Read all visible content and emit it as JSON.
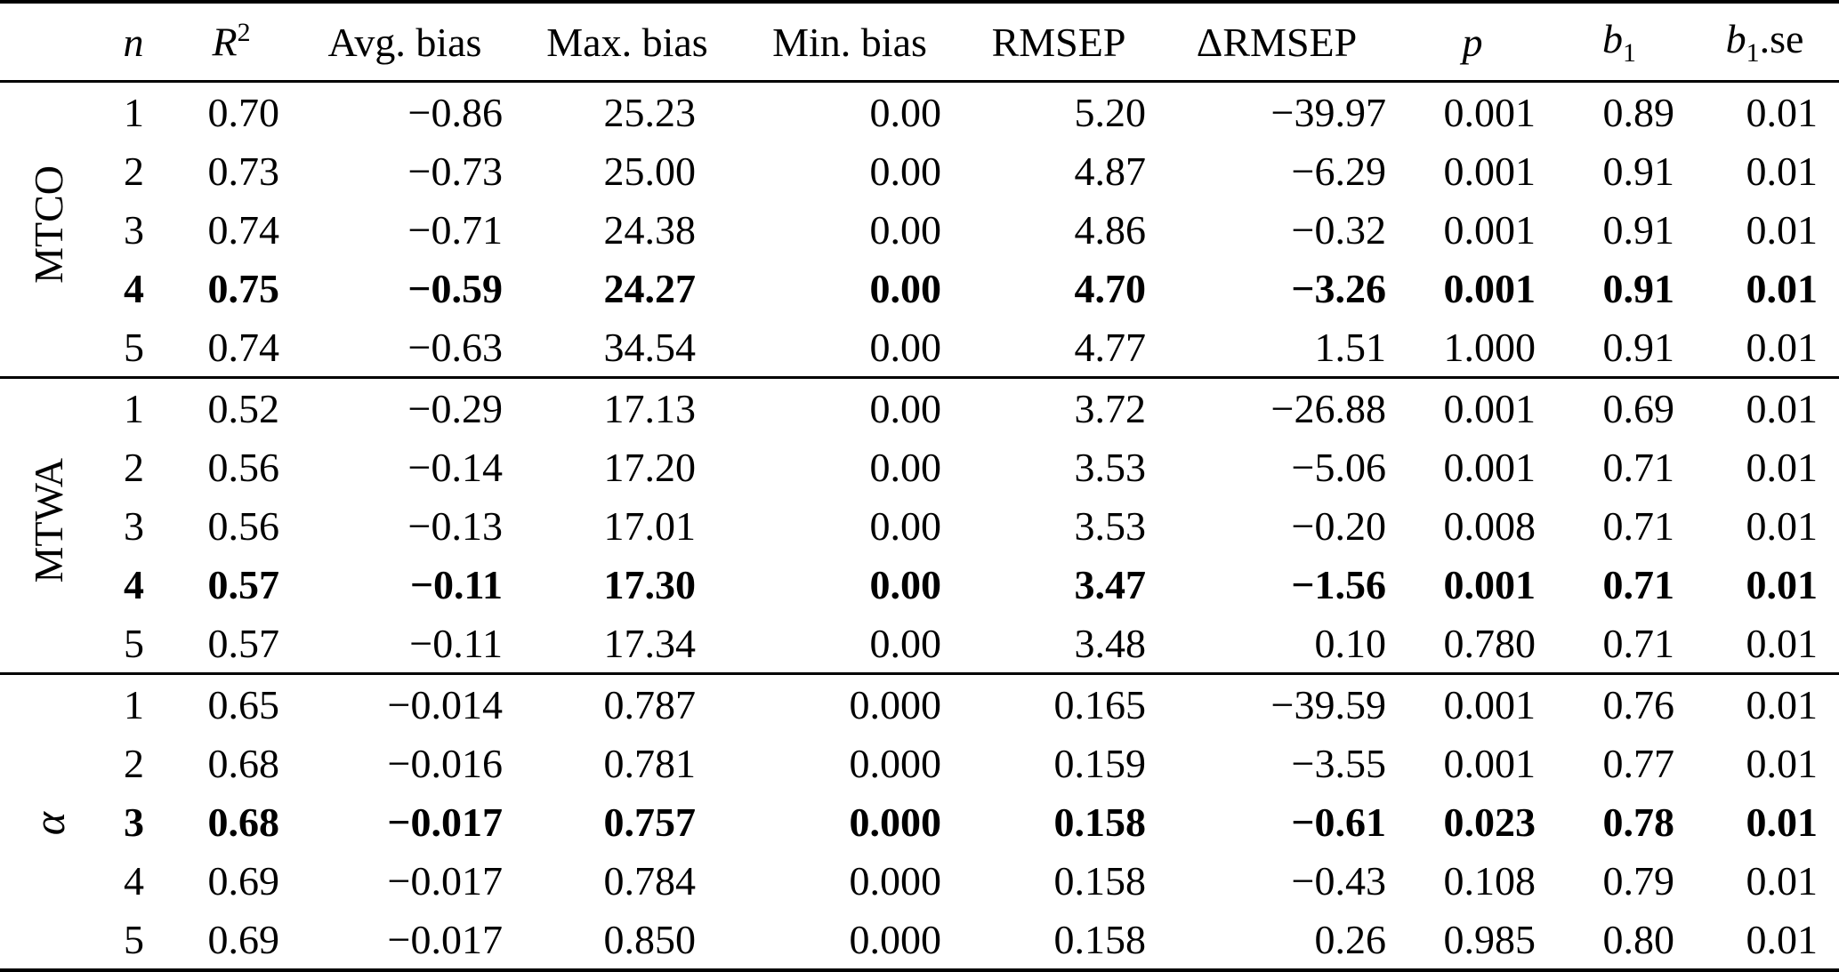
{
  "header": {
    "n": "n",
    "r2_base": "R",
    "r2_sup": "2",
    "avg_bias": "Avg. bias",
    "max_bias": "Max. bias",
    "min_bias": "Min. bias",
    "rmsep": "RMSEP",
    "delta_rmsep": "ΔRMSEP",
    "p": "p",
    "b1_base": "b",
    "b1_sub": "1",
    "b1se_base": "b",
    "b1se_sub": "1",
    "b1se_rest": ".se"
  },
  "groups": [
    {
      "label": "MTCO",
      "bold_row_index": 3,
      "rows": [
        [
          "1",
          "0.70",
          "−0.86",
          "25.23",
          "0.00",
          "5.20",
          "−39.97",
          "0.001",
          "0.89",
          "0.01"
        ],
        [
          "2",
          "0.73",
          "−0.73",
          "25.00",
          "0.00",
          "4.87",
          "−6.29",
          "0.001",
          "0.91",
          "0.01"
        ],
        [
          "3",
          "0.74",
          "−0.71",
          "24.38",
          "0.00",
          "4.86",
          "−0.32",
          "0.001",
          "0.91",
          "0.01"
        ],
        [
          "4",
          "0.75",
          "−0.59",
          "24.27",
          "0.00",
          "4.70",
          "−3.26",
          "0.001",
          "0.91",
          "0.01"
        ],
        [
          "5",
          "0.74",
          "−0.63",
          "34.54",
          "0.00",
          "4.77",
          "1.51",
          "1.000",
          "0.91",
          "0.01"
        ]
      ]
    },
    {
      "label": "MTWA",
      "bold_row_index": 3,
      "rows": [
        [
          "1",
          "0.52",
          "−0.29",
          "17.13",
          "0.00",
          "3.72",
          "−26.88",
          "0.001",
          "0.69",
          "0.01"
        ],
        [
          "2",
          "0.56",
          "−0.14",
          "17.20",
          "0.00",
          "3.53",
          "−5.06",
          "0.001",
          "0.71",
          "0.01"
        ],
        [
          "3",
          "0.56",
          "−0.13",
          "17.01",
          "0.00",
          "3.53",
          "−0.20",
          "0.008",
          "0.71",
          "0.01"
        ],
        [
          "4",
          "0.57",
          "−0.11",
          "17.30",
          "0.00",
          "3.47",
          "−1.56",
          "0.001",
          "0.71",
          "0.01"
        ],
        [
          "5",
          "0.57",
          "−0.11",
          "17.34",
          "0.00",
          "3.48",
          "0.10",
          "0.780",
          "0.71",
          "0.01"
        ]
      ]
    },
    {
      "label": "α",
      "bold_row_index": 2,
      "rows": [
        [
          "1",
          "0.65",
          "−0.014",
          "0.787",
          "0.000",
          "0.165",
          "−39.59",
          "0.001",
          "0.76",
          "0.01"
        ],
        [
          "2",
          "0.68",
          "−0.016",
          "0.781",
          "0.000",
          "0.159",
          "−3.55",
          "0.001",
          "0.77",
          "0.01"
        ],
        [
          "3",
          "0.68",
          "−0.017",
          "0.757",
          "0.000",
          "0.158",
          "−0.61",
          "0.023",
          "0.78",
          "0.01"
        ],
        [
          "4",
          "0.69",
          "−0.017",
          "0.784",
          "0.000",
          "0.158",
          "−0.43",
          "0.108",
          "0.79",
          "0.01"
        ],
        [
          "5",
          "0.69",
          "−0.017",
          "0.850",
          "0.000",
          "0.158",
          "0.26",
          "0.985",
          "0.80",
          "0.01"
        ]
      ]
    }
  ]
}
